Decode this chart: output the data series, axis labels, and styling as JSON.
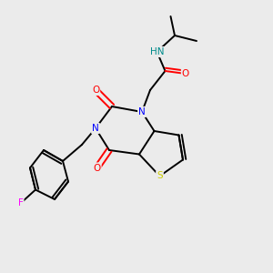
{
  "background_color": "#ebebeb",
  "figsize": [
    3.0,
    3.0
  ],
  "dpi": 100,
  "colors": {
    "C": "#000000",
    "N": "#0000ff",
    "O": "#ff0000",
    "S": "#cccc00",
    "F": "#ff00ff",
    "H": "#008b8b"
  },
  "bond_color": "#000000",
  "bond_lw": 1.4,
  "font_size": 7.5
}
